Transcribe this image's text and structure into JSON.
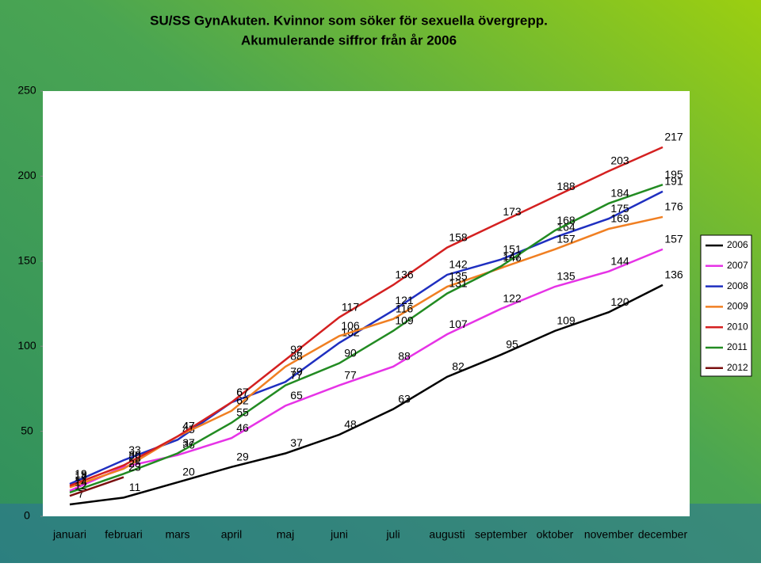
{
  "chart_data": {
    "type": "line",
    "title": "SU/SS GynAkuten. Kvinnor som söker för sexuella övergrepp.",
    "subtitle": "Akumulerande siffror från år 2006",
    "categories": [
      "januari",
      "februari",
      "mars",
      "april",
      "maj",
      "juni",
      "juli",
      "augusti",
      "september",
      "oktober",
      "november",
      "december"
    ],
    "series": [
      {
        "name": "2006",
        "color": "#000000",
        "values": [
          7,
          11,
          20,
          29,
          37,
          48,
          63,
          82,
          95,
          109,
          120,
          136
        ]
      },
      {
        "name": "2007",
        "color": "#e633e6",
        "values": [
          15,
          29,
          36,
          46,
          65,
          77,
          88,
          107,
          122,
          135,
          144,
          157
        ]
      },
      {
        "name": "2008",
        "color": "#1f2fc0",
        "values": [
          19,
          33,
          45,
          67,
          79,
          102,
          121,
          142,
          151,
          164,
          175,
          191
        ]
      },
      {
        "name": "2009",
        "color": "#f07f22",
        "values": [
          17,
          28,
          47,
          62,
          88,
          106,
          116,
          135,
          146,
          157,
          169,
          176
        ]
      },
      {
        "name": "2010",
        "color": "#d42020",
        "values": [
          18,
          30,
          47,
          67,
          92,
          117,
          136,
          158,
          173,
          188,
          203,
          217
        ]
      },
      {
        "name": "2011",
        "color": "#228b22",
        "values": [
          14,
          25,
          37,
          55,
          77,
          90,
          109,
          131,
          147,
          168,
          184,
          195
        ]
      },
      {
        "name": "2012",
        "color": "#7a1010",
        "values": [
          12,
          23,
          null,
          null,
          null,
          null,
          null,
          null,
          null,
          null,
          null,
          null
        ]
      }
    ],
    "ylim": [
      0,
      250
    ],
    "yticks": [
      0,
      50,
      100,
      150,
      200,
      250
    ],
    "legend": "right"
  }
}
